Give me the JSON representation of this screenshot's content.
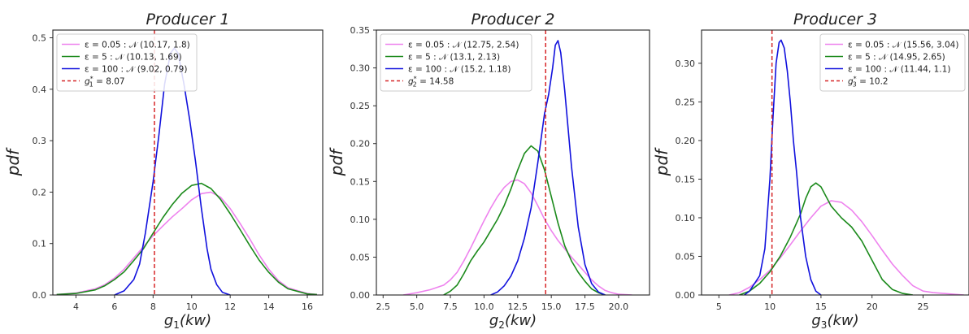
{
  "chart_data": [
    {
      "type": "line",
      "title": "Producer 1",
      "xlabel_main": "g",
      "xlabel_sub": "1",
      "xlabel_unit": "(kw)",
      "ylabel": "pdf",
      "xlim": [
        2.8,
        16.8
      ],
      "ylim": [
        0,
        0.515
      ],
      "xticks": [
        "4",
        "6",
        "8",
        "10",
        "12",
        "14",
        "16"
      ],
      "yticks": [
        "0.0",
        "0.1",
        "0.2",
        "0.3",
        "0.4",
        "0.5"
      ],
      "xtick_values": [
        4,
        6,
        8,
        10,
        12,
        14,
        16
      ],
      "ytick_values": [
        0,
        0.1,
        0.2,
        0.3,
        0.4,
        0.5
      ],
      "legend_position": "upper left",
      "series": [
        {
          "name": "ε = 0.05 : 𝒩 (10.17, 1.8)",
          "color": "#ee82ee",
          "x": [
            3,
            4,
            5,
            5.5,
            6,
            6.5,
            7,
            7.5,
            8,
            8.5,
            9,
            9.5,
            10,
            10.5,
            11,
            11.5,
            12,
            12.5,
            13,
            13.5,
            14,
            14.5,
            15,
            16,
            16.5
          ],
          "y": [
            0.001,
            0.004,
            0.012,
            0.02,
            0.033,
            0.05,
            0.072,
            0.094,
            0.115,
            0.134,
            0.152,
            0.168,
            0.185,
            0.197,
            0.2,
            0.19,
            0.168,
            0.14,
            0.11,
            0.078,
            0.05,
            0.028,
            0.014,
            0.003,
            0.001
          ]
        },
        {
          "name": "ε = 5 : 𝒩 (10.13, 1.69)",
          "color": "#1b8a1b",
          "x": [
            3,
            4,
            5,
            5.5,
            6,
            6.5,
            7,
            7.5,
            8,
            8.5,
            9,
            9.5,
            10,
            10.5,
            11,
            11.5,
            12,
            12.5,
            13,
            13.5,
            14,
            14.5,
            15,
            16,
            16.5
          ],
          "y": [
            0.001,
            0.003,
            0.01,
            0.018,
            0.03,
            0.045,
            0.067,
            0.09,
            0.12,
            0.15,
            0.176,
            0.198,
            0.213,
            0.217,
            0.207,
            0.186,
            0.158,
            0.128,
            0.097,
            0.068,
            0.044,
            0.025,
            0.012,
            0.002,
            0.001
          ]
        },
        {
          "name": "ε = 100 : 𝒩 (9.02, 0.79)",
          "color": "#1111dd",
          "x": [
            6,
            6.5,
            7,
            7.3,
            7.6,
            8,
            8.3,
            8.6,
            8.9,
            9.1,
            9.3,
            9.6,
            9.9,
            10.2,
            10.5,
            10.8,
            11,
            11.3,
            11.6,
            12
          ],
          "y": [
            0.0,
            0.008,
            0.03,
            0.06,
            0.12,
            0.22,
            0.31,
            0.41,
            0.47,
            0.48,
            0.47,
            0.41,
            0.34,
            0.26,
            0.17,
            0.09,
            0.05,
            0.02,
            0.005,
            0.0
          ]
        }
      ],
      "refline": {
        "name": "g",
        "sub": "1",
        "sup": "*",
        "value_text": "= 8.07",
        "x": 8.07,
        "color": "#d62728"
      }
    },
    {
      "type": "line",
      "title": "Producer 2",
      "xlabel_main": "g",
      "xlabel_sub": "2",
      "xlabel_unit": "(kw)",
      "ylabel": "pdf",
      "xlim": [
        2.0,
        22.3
      ],
      "ylim": [
        0,
        0.35
      ],
      "xticks": [
        "2.5",
        "5.0",
        "7.5",
        "10.0",
        "12.5",
        "15.0",
        "17.5",
        "20.0"
      ],
      "yticks": [
        "0.00",
        "0.05",
        "0.10",
        "0.15",
        "0.20",
        "0.25",
        "0.30",
        "0.35"
      ],
      "xtick_values": [
        2.5,
        5,
        7.5,
        10,
        12.5,
        15,
        17.5,
        20
      ],
      "ytick_values": [
        0,
        0.05,
        0.1,
        0.15,
        0.2,
        0.25,
        0.3,
        0.35
      ],
      "legend_position": "upper left",
      "series": [
        {
          "name": "ε = 0.05 : 𝒩 (12.75, 2.54)",
          "color": "#ee82ee",
          "x": [
            4,
            5,
            6,
            7,
            7.5,
            8,
            8.5,
            9,
            9.5,
            10,
            10.5,
            11,
            11.5,
            12,
            12.5,
            13,
            13.5,
            14,
            14.5,
            15,
            15.5,
            16,
            16.5,
            17,
            17.5,
            18,
            18.5,
            19,
            19.5,
            20,
            20.5,
            21
          ],
          "y": [
            0.0,
            0.003,
            0.007,
            0.013,
            0.02,
            0.03,
            0.045,
            0.062,
            0.08,
            0.098,
            0.115,
            0.13,
            0.142,
            0.15,
            0.152,
            0.147,
            0.135,
            0.118,
            0.1,
            0.085,
            0.072,
            0.061,
            0.05,
            0.04,
            0.03,
            0.02,
            0.012,
            0.006,
            0.003,
            0.001,
            0.0005,
            0.0
          ]
        },
        {
          "name": "ε = 5 : 𝒩 (13.1, 2.13)",
          "color": "#1b8a1b",
          "x": [
            7,
            7.5,
            8,
            8.5,
            9,
            9.5,
            10,
            10.5,
            11,
            11.5,
            12,
            12.5,
            13,
            13.5,
            14,
            14.5,
            15,
            15.5,
            16,
            16.5,
            17,
            17.5,
            18,
            18.5,
            19
          ],
          "y": [
            0.0,
            0.005,
            0.013,
            0.028,
            0.045,
            0.058,
            0.07,
            0.085,
            0.1,
            0.118,
            0.14,
            0.165,
            0.187,
            0.197,
            0.19,
            0.165,
            0.13,
            0.095,
            0.065,
            0.045,
            0.03,
            0.018,
            0.008,
            0.003,
            0.0
          ]
        },
        {
          "name": "ε = 100 : 𝒩 (15.2, 1.18)",
          "color": "#1111dd",
          "x": [
            10.5,
            11,
            11.5,
            12,
            12.5,
            13,
            13.5,
            14,
            14.5,
            14.8,
            15.1,
            15.3,
            15.5,
            15.7,
            16,
            16.5,
            17,
            17.5,
            18,
            18.5,
            19
          ],
          "y": [
            0.0,
            0.004,
            0.012,
            0.025,
            0.045,
            0.075,
            0.115,
            0.175,
            0.24,
            0.265,
            0.3,
            0.33,
            0.336,
            0.32,
            0.27,
            0.17,
            0.09,
            0.04,
            0.015,
            0.004,
            0.0
          ]
        }
      ],
      "refline": {
        "name": "g",
        "sub": "2",
        "sup": "*",
        "value_text": "= 14.58",
        "x": 14.58,
        "color": "#d62728"
      }
    },
    {
      "type": "line",
      "title": "Producer 3",
      "xlabel_main": "g",
      "xlabel_sub": "3",
      "xlabel_unit": "(kw)",
      "ylabel": "pdf",
      "xlim": [
        3.3,
        29.5
      ],
      "ylim": [
        0,
        0.343
      ],
      "xticks": [
        "5",
        "10",
        "15",
        "20",
        "25"
      ],
      "yticks": [
        "0.00",
        "0.05",
        "0.10",
        "0.15",
        "0.20",
        "0.25",
        "0.30"
      ],
      "xtick_values": [
        5,
        10,
        15,
        20,
        25
      ],
      "ytick_values": [
        0,
        0.05,
        0.1,
        0.15,
        0.2,
        0.25,
        0.3
      ],
      "legend_position": "upper right",
      "series": [
        {
          "name": "ε = 0.05 : 𝒩 (15.56, 3.04)",
          "color": "#ee82ee",
          "x": [
            6,
            7,
            8,
            9,
            10,
            11,
            12,
            13,
            14,
            15,
            16,
            17,
            18,
            19,
            20,
            21,
            22,
            23,
            24,
            25,
            26,
            27,
            28,
            29
          ],
          "y": [
            0.0,
            0.003,
            0.01,
            0.02,
            0.032,
            0.048,
            0.065,
            0.083,
            0.1,
            0.115,
            0.122,
            0.12,
            0.11,
            0.095,
            0.077,
            0.058,
            0.04,
            0.025,
            0.012,
            0.005,
            0.003,
            0.002,
            0.001,
            0.0
          ]
        },
        {
          "name": "ε = 5 : 𝒩 (14.95, 2.65)",
          "color": "#1b8a1b",
          "x": [
            7,
            8,
            9,
            10,
            11,
            12,
            13,
            13.5,
            14,
            14.5,
            15,
            16,
            17,
            18,
            19,
            20,
            21,
            22,
            23,
            24
          ],
          "y": [
            0.0,
            0.005,
            0.015,
            0.03,
            0.05,
            0.075,
            0.105,
            0.125,
            0.14,
            0.145,
            0.14,
            0.115,
            0.1,
            0.088,
            0.07,
            0.045,
            0.02,
            0.007,
            0.002,
            0.0
          ]
        },
        {
          "name": "ε = 100 : 𝒩 (11.44, 1.1)",
          "color": "#1111dd",
          "x": [
            7.5,
            8,
            8.5,
            9,
            9.5,
            10,
            10.3,
            10.6,
            10.9,
            11.1,
            11.4,
            11.7,
            12,
            12.3,
            12.6,
            13,
            13.5,
            14,
            14.5,
            15
          ],
          "y": [
            0.0,
            0.005,
            0.015,
            0.025,
            0.06,
            0.15,
            0.23,
            0.3,
            0.327,
            0.33,
            0.32,
            0.29,
            0.25,
            0.2,
            0.16,
            0.1,
            0.05,
            0.02,
            0.005,
            0.0
          ]
        }
      ],
      "refline": {
        "name": "g",
        "sub": "3",
        "sup": "*",
        "value_text": "= 10.2",
        "x": 10.2,
        "color": "#d62728"
      }
    }
  ]
}
